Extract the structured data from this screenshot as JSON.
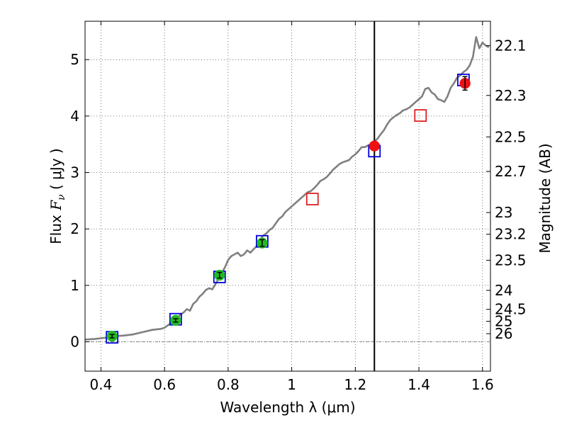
{
  "chart_data": {
    "type": "scatter",
    "xlabel": "Wavelength  λ (μm)",
    "ylabel": "Flux  F_ν  ( μJy )",
    "ylabel_parts": {
      "pre": "Flux  ",
      "var": "F",
      "sub": "ν",
      "post": "  ( μJy )"
    },
    "y2label": "Magnitude (AB)",
    "xlim": [
      0.35,
      1.625
    ],
    "ylim": [
      -0.52,
      5.68
    ],
    "grid": true,
    "x_ticks": [
      0.4,
      0.6,
      0.8,
      1.0,
      1.2,
      1.4,
      1.6
    ],
    "x_tick_labels": [
      "0.4",
      "0.6",
      "0.8",
      "1",
      "1.2",
      "1.4",
      "1.6"
    ],
    "y_ticks": [
      0,
      1,
      2,
      3,
      4,
      5
    ],
    "y_tick_labels": [
      "0",
      "1",
      "2",
      "3",
      "4",
      "5"
    ],
    "mag_ticks": [
      {
        "value": 22.1,
        "label": "22.1"
      },
      {
        "value": 22.3,
        "label": "22.3"
      },
      {
        "value": 22.5,
        "label": "22.5"
      },
      {
        "value": 22.7,
        "label": "22.7"
      },
      {
        "value": 23,
        "label": "23"
      },
      {
        "value": 23.2,
        "label": "23.2"
      },
      {
        "value": 23.5,
        "label": "23.5"
      },
      {
        "value": 24,
        "label": "24"
      },
      {
        "value": 24.5,
        "label": "24.5"
      },
      {
        "value": 25,
        "label": "25"
      },
      {
        "value": 26,
        "label": "26"
      }
    ],
    "vertical_line_x": 1.26,
    "colors": {
      "template": "#808080",
      "green_point": "#22bb22",
      "red_point": "#ee1111",
      "blue_square": "#0000dd",
      "red_square": "#dd2222",
      "vline": "#000000",
      "grid": "#555555"
    },
    "template_spectrum": [
      [
        0.35,
        0.04
      ],
      [
        0.38,
        0.05
      ],
      [
        0.41,
        0.07
      ],
      [
        0.44,
        0.1
      ],
      [
        0.47,
        0.11
      ],
      [
        0.5,
        0.13
      ],
      [
        0.53,
        0.17
      ],
      [
        0.56,
        0.21
      ],
      [
        0.59,
        0.23
      ],
      [
        0.6,
        0.25
      ],
      [
        0.61,
        0.29
      ],
      [
        0.62,
        0.33
      ],
      [
        0.63,
        0.38
      ],
      [
        0.64,
        0.42
      ],
      [
        0.65,
        0.48
      ],
      [
        0.66,
        0.52
      ],
      [
        0.67,
        0.58
      ],
      [
        0.68,
        0.55
      ],
      [
        0.69,
        0.67
      ],
      [
        0.7,
        0.72
      ],
      [
        0.71,
        0.8
      ],
      [
        0.72,
        0.85
      ],
      [
        0.73,
        0.92
      ],
      [
        0.74,
        0.95
      ],
      [
        0.75,
        0.93
      ],
      [
        0.76,
        1.02
      ],
      [
        0.77,
        1.12
      ],
      [
        0.78,
        1.22
      ],
      [
        0.79,
        1.32
      ],
      [
        0.8,
        1.45
      ],
      [
        0.81,
        1.52
      ],
      [
        0.82,
        1.55
      ],
      [
        0.83,
        1.58
      ],
      [
        0.84,
        1.52
      ],
      [
        0.85,
        1.55
      ],
      [
        0.86,
        1.62
      ],
      [
        0.87,
        1.58
      ],
      [
        0.88,
        1.64
      ],
      [
        0.89,
        1.7
      ],
      [
        0.9,
        1.8
      ],
      [
        0.91,
        1.88
      ],
      [
        0.92,
        1.92
      ],
      [
        0.93,
        1.98
      ],
      [
        0.94,
        2.02
      ],
      [
        0.95,
        2.1
      ],
      [
        0.96,
        2.18
      ],
      [
        0.97,
        2.22
      ],
      [
        0.98,
        2.3
      ],
      [
        0.99,
        2.35
      ],
      [
        1.0,
        2.4
      ],
      [
        1.01,
        2.45
      ],
      [
        1.02,
        2.5
      ],
      [
        1.03,
        2.55
      ],
      [
        1.04,
        2.6
      ],
      [
        1.05,
        2.65
      ],
      [
        1.06,
        2.67
      ],
      [
        1.07,
        2.72
      ],
      [
        1.08,
        2.78
      ],
      [
        1.09,
        2.85
      ],
      [
        1.1,
        2.88
      ],
      [
        1.11,
        2.92
      ],
      [
        1.12,
        2.98
      ],
      [
        1.13,
        3.05
      ],
      [
        1.14,
        3.1
      ],
      [
        1.15,
        3.15
      ],
      [
        1.16,
        3.18
      ],
      [
        1.17,
        3.2
      ],
      [
        1.18,
        3.22
      ],
      [
        1.19,
        3.28
      ],
      [
        1.2,
        3.32
      ],
      [
        1.21,
        3.38
      ],
      [
        1.22,
        3.45
      ],
      [
        1.23,
        3.45
      ],
      [
        1.24,
        3.48
      ],
      [
        1.25,
        3.5
      ],
      [
        1.26,
        3.55
      ],
      [
        1.27,
        3.6
      ],
      [
        1.28,
        3.68
      ],
      [
        1.29,
        3.75
      ],
      [
        1.3,
        3.85
      ],
      [
        1.31,
        3.93
      ],
      [
        1.32,
        3.98
      ],
      [
        1.33,
        4.02
      ],
      [
        1.34,
        4.05
      ],
      [
        1.35,
        4.1
      ],
      [
        1.36,
        4.12
      ],
      [
        1.37,
        4.15
      ],
      [
        1.38,
        4.2
      ],
      [
        1.39,
        4.25
      ],
      [
        1.4,
        4.3
      ],
      [
        1.41,
        4.35
      ],
      [
        1.42,
        4.48
      ],
      [
        1.43,
        4.5
      ],
      [
        1.44,
        4.42
      ],
      [
        1.45,
        4.38
      ],
      [
        1.46,
        4.3
      ],
      [
        1.47,
        4.28
      ],
      [
        1.48,
        4.25
      ],
      [
        1.49,
        4.35
      ],
      [
        1.5,
        4.5
      ],
      [
        1.51,
        4.58
      ],
      [
        1.52,
        4.68
      ],
      [
        1.53,
        4.72
      ],
      [
        1.54,
        4.78
      ],
      [
        1.55,
        4.82
      ],
      [
        1.56,
        4.9
      ],
      [
        1.57,
        5.05
      ],
      [
        1.58,
        5.4
      ],
      [
        1.59,
        5.2
      ],
      [
        1.6,
        5.3
      ],
      [
        1.61,
        5.25
      ],
      [
        1.62,
        5.22
      ]
    ],
    "model_squares": [
      {
        "x": 0.435,
        "y": 0.08,
        "color": "blue"
      },
      {
        "x": 0.635,
        "y": 0.4,
        "color": "blue"
      },
      {
        "x": 0.773,
        "y": 1.15,
        "color": "blue"
      },
      {
        "x": 0.907,
        "y": 1.78,
        "color": "blue"
      },
      {
        "x": 1.065,
        "y": 2.53,
        "color": "red"
      },
      {
        "x": 1.26,
        "y": 3.38,
        "color": "blue"
      },
      {
        "x": 1.405,
        "y": 4.01,
        "color": "red"
      },
      {
        "x": 1.54,
        "y": 4.64,
        "color": "blue"
      }
    ],
    "observed_points": [
      {
        "x": 0.435,
        "y": 0.1,
        "err": 0.03,
        "color": "green"
      },
      {
        "x": 0.635,
        "y": 0.38,
        "err": 0.03,
        "color": "green"
      },
      {
        "x": 0.773,
        "y": 1.18,
        "err": 0.05,
        "color": "green"
      },
      {
        "x": 0.907,
        "y": 1.75,
        "err": 0.06,
        "color": "green"
      },
      {
        "x": 1.26,
        "y": 3.47,
        "err": 0.0,
        "color": "red"
      },
      {
        "x": 1.545,
        "y": 4.58,
        "err": 0.12,
        "color": "red"
      }
    ]
  }
}
